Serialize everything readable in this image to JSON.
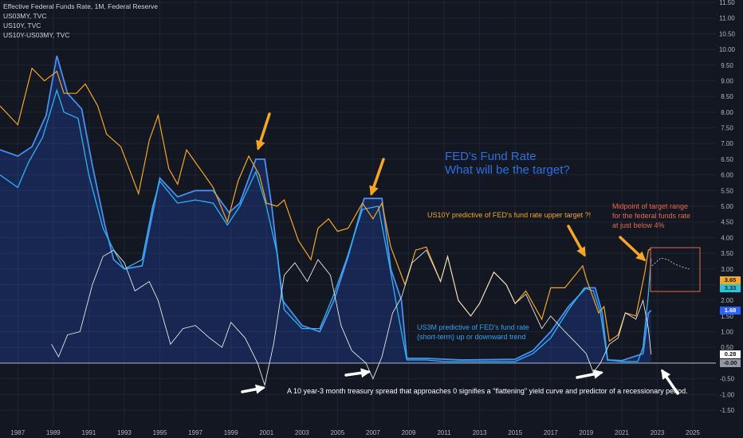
{
  "legend": {
    "line1": "Effective Federal Funds Rate, 1M, Federal Reserve",
    "line2": "US03MY, TVC",
    "line3": "US10Y, TVC",
    "line4": "US10Y-US03MY, TVC"
  },
  "annotations": {
    "title_line1": "FED's Fund Rate",
    "title_line2": "What will be the target?",
    "us10y_note": "US10Y predictive of FED's fund rate upper target ?!",
    "midpoint_line1": "Midpoint of target range",
    "midpoint_line2": "for the federal funds rate",
    "midpoint_line3": "at just below 4%",
    "us3m_line1": "US3M predictive of FED's fund rate",
    "us3m_line2": "(short-term) up or downward trend",
    "spread_note": "A 10 year-3 month treasury spread that approaches 0 signifies a \"flattening\" yield curve and predictor of a recessionary period."
  },
  "badges": {
    "us10y": "3.65",
    "us3m": "3.33",
    "fedfunds": "1.68",
    "spread": "0.28",
    "zero": "-0.00"
  },
  "colors": {
    "background": "#131722",
    "us10y": "#f5a623",
    "us3m": "#2196f3",
    "fedfunds": "#4a8ef0",
    "spread": "#e6e6e6",
    "title": "#2f6fe0",
    "midpoint_box": "#e8694a",
    "arrow_orange": "#f5a623",
    "arrow_white": "#ffffff"
  },
  "chart_data": {
    "type": "line",
    "xlabel": "",
    "ylabel": "",
    "x_ticks": [
      "1987",
      "1989",
      "1991",
      "1993",
      "1995",
      "1997",
      "1999",
      "2001",
      "2003",
      "2005",
      "2007",
      "2009",
      "2011",
      "2013",
      "2015",
      "2017",
      "2019",
      "2021",
      "2023",
      "2025"
    ],
    "y_ticks": [
      "11.50",
      "11.00",
      "10.50",
      "10.00",
      "9.50",
      "9.00",
      "8.50",
      "8.00",
      "7.50",
      "7.00",
      "6.50",
      "6.00",
      "5.50",
      "5.00",
      "4.50",
      "4.00",
      "3.50",
      "3.00",
      "2.50",
      "2.00",
      "1.50",
      "1.00",
      "0.50",
      "0.00",
      "-0.50",
      "-1.00",
      "-1.50"
    ],
    "ylim": [
      -1.5,
      11.5
    ],
    "xlim": [
      1986.0,
      2026.3
    ],
    "series": [
      {
        "name": "US10Y, TVC",
        "points": [
          [
            1986.0,
            8.2
          ],
          [
            1987.0,
            7.6
          ],
          [
            1987.8,
            9.4
          ],
          [
            1988.5,
            9.0
          ],
          [
            1989.2,
            9.3
          ],
          [
            1989.6,
            8.6
          ],
          [
            1990.3,
            8.6
          ],
          [
            1990.8,
            8.9
          ],
          [
            1991.5,
            8.2
          ],
          [
            1992.0,
            7.3
          ],
          [
            1992.8,
            6.9
          ],
          [
            1993.4,
            6.0
          ],
          [
            1993.8,
            5.4
          ],
          [
            1994.4,
            7.1
          ],
          [
            1994.9,
            7.9
          ],
          [
            1995.5,
            6.2
          ],
          [
            1996.0,
            5.7
          ],
          [
            1996.5,
            6.8
          ],
          [
            1997.0,
            6.4
          ],
          [
            1997.5,
            6.0
          ],
          [
            1998.0,
            5.6
          ],
          [
            1998.8,
            4.5
          ],
          [
            1999.4,
            5.8
          ],
          [
            2000.0,
            6.6
          ],
          [
            2000.6,
            6.0
          ],
          [
            2001.0,
            5.1
          ],
          [
            2001.6,
            5.0
          ],
          [
            2002.0,
            5.2
          ],
          [
            2002.8,
            3.9
          ],
          [
            2003.5,
            3.3
          ],
          [
            2003.9,
            4.3
          ],
          [
            2004.5,
            4.6
          ],
          [
            2005.0,
            4.2
          ],
          [
            2005.6,
            4.3
          ],
          [
            2006.4,
            5.1
          ],
          [
            2007.0,
            4.6
          ],
          [
            2007.5,
            5.1
          ],
          [
            2008.0,
            3.7
          ],
          [
            2008.8,
            2.5
          ],
          [
            2009.4,
            3.6
          ],
          [
            2010.0,
            3.7
          ],
          [
            2010.8,
            2.6
          ],
          [
            2011.2,
            3.4
          ],
          [
            2011.8,
            2.0
          ],
          [
            2012.5,
            1.5
          ],
          [
            2013.0,
            1.9
          ],
          [
            2013.8,
            2.9
          ],
          [
            2014.5,
            2.5
          ],
          [
            2015.0,
            1.9
          ],
          [
            2015.6,
            2.3
          ],
          [
            2016.5,
            1.4
          ],
          [
            2017.0,
            2.4
          ],
          [
            2017.8,
            2.4
          ],
          [
            2018.8,
            3.1
          ],
          [
            2019.0,
            2.7
          ],
          [
            2019.7,
            1.6
          ],
          [
            2020.0,
            1.8
          ],
          [
            2020.3,
            0.7
          ],
          [
            2020.8,
            0.9
          ],
          [
            2021.2,
            1.6
          ],
          [
            2021.8,
            1.5
          ],
          [
            2022.3,
            2.9
          ],
          [
            2022.5,
            3.6
          ],
          [
            2022.65,
            3.65
          ]
        ]
      },
      {
        "name": "US03MY, TVC",
        "points": [
          [
            1986.0,
            6.0
          ],
          [
            1987.0,
            5.6
          ],
          [
            1987.6,
            6.4
          ],
          [
            1988.4,
            7.2
          ],
          [
            1989.2,
            8.7
          ],
          [
            1989.6,
            8.0
          ],
          [
            1990.4,
            7.8
          ],
          [
            1991.0,
            6.0
          ],
          [
            1991.8,
            4.3
          ],
          [
            1992.4,
            3.6
          ],
          [
            1993.0,
            3.0
          ],
          [
            1994.0,
            3.3
          ],
          [
            1994.6,
            5.0
          ],
          [
            1995.0,
            5.8
          ],
          [
            1996.0,
            5.1
          ],
          [
            1997.0,
            5.2
          ],
          [
            1998.0,
            5.1
          ],
          [
            1998.8,
            4.4
          ],
          [
            1999.5,
            5.0
          ],
          [
            2000.4,
            6.1
          ],
          [
            2001.0,
            5.0
          ],
          [
            2001.6,
            3.5
          ],
          [
            2002.0,
            1.7
          ],
          [
            2003.0,
            1.1
          ],
          [
            2004.0,
            1.1
          ],
          [
            2004.8,
            2.2
          ],
          [
            2005.5,
            3.3
          ],
          [
            2006.4,
            4.9
          ],
          [
            2007.3,
            5.0
          ],
          [
            2007.9,
            3.2
          ],
          [
            2008.4,
            1.6
          ],
          [
            2008.9,
            0.1
          ],
          [
            2010.0,
            0.1
          ],
          [
            2011.0,
            0.05
          ],
          [
            2013.0,
            0.05
          ],
          [
            2015.0,
            0.05
          ],
          [
            2016.0,
            0.3
          ],
          [
            2017.0,
            0.8
          ],
          [
            2018.0,
            1.7
          ],
          [
            2018.9,
            2.4
          ],
          [
            2019.4,
            2.3
          ],
          [
            2019.8,
            1.6
          ],
          [
            2020.2,
            0.1
          ],
          [
            2021.0,
            0.05
          ],
          [
            2021.9,
            0.05
          ],
          [
            2022.2,
            0.5
          ],
          [
            2022.5,
            2.2
          ],
          [
            2022.65,
            3.33
          ]
        ]
      },
      {
        "name": "Effective Federal Funds Rate, 1M, Federal Reserve",
        "points": [
          [
            1986.0,
            6.8
          ],
          [
            1987.0,
            6.6
          ],
          [
            1987.8,
            6.9
          ],
          [
            1988.6,
            7.9
          ],
          [
            1989.2,
            9.8
          ],
          [
            1989.8,
            8.6
          ],
          [
            1990.6,
            8.1
          ],
          [
            1991.2,
            6.3
          ],
          [
            1991.9,
            4.4
          ],
          [
            1992.4,
            3.3
          ],
          [
            1993.0,
            3.0
          ],
          [
            1994.0,
            3.1
          ],
          [
            1994.6,
            4.8
          ],
          [
            1995.0,
            5.9
          ],
          [
            1996.0,
            5.3
          ],
          [
            1997.0,
            5.5
          ],
          [
            1998.0,
            5.5
          ],
          [
            1998.9,
            4.8
          ],
          [
            1999.5,
            5.1
          ],
          [
            2000.4,
            6.5
          ],
          [
            2000.9,
            6.5
          ],
          [
            2001.3,
            5.0
          ],
          [
            2001.9,
            2.0
          ],
          [
            2003.0,
            1.2
          ],
          [
            2004.0,
            1.0
          ],
          [
            2004.8,
            2.0
          ],
          [
            2005.6,
            3.4
          ],
          [
            2006.5,
            5.25
          ],
          [
            2007.5,
            5.25
          ],
          [
            2008.0,
            3.0
          ],
          [
            2008.6,
            2.0
          ],
          [
            2008.9,
            0.15
          ],
          [
            2010.0,
            0.15
          ],
          [
            2012.0,
            0.1
          ],
          [
            2015.0,
            0.12
          ],
          [
            2016.0,
            0.4
          ],
          [
            2017.0,
            1.0
          ],
          [
            2018.0,
            1.8
          ],
          [
            2019.0,
            2.4
          ],
          [
            2019.5,
            2.4
          ],
          [
            2019.9,
            1.6
          ],
          [
            2020.2,
            0.1
          ],
          [
            2021.0,
            0.08
          ],
          [
            2022.2,
            0.3
          ],
          [
            2022.5,
            1.6
          ],
          [
            2022.65,
            1.68
          ]
        ]
      },
      {
        "name": "US10Y-US03MY, TVC",
        "points": [
          [
            1988.9,
            0.6
          ],
          [
            1989.3,
            0.2
          ],
          [
            1989.8,
            0.9
          ],
          [
            1990.5,
            1.0
          ],
          [
            1991.2,
            2.5
          ],
          [
            1991.8,
            3.4
          ],
          [
            1992.4,
            3.6
          ],
          [
            1993.0,
            3.2
          ],
          [
            1993.6,
            2.3
          ],
          [
            1994.4,
            2.6
          ],
          [
            1994.9,
            2.0
          ],
          [
            1995.6,
            0.6
          ],
          [
            1996.3,
            1.1
          ],
          [
            1997.0,
            1.2
          ],
          [
            1997.8,
            0.8
          ],
          [
            1998.5,
            0.5
          ],
          [
            1999.0,
            1.3
          ],
          [
            1999.8,
            0.8
          ],
          [
            2000.5,
            0.0
          ],
          [
            2000.9,
            -0.7
          ],
          [
            2001.4,
            0.6
          ],
          [
            2002.0,
            2.8
          ],
          [
            2002.6,
            3.2
          ],
          [
            2003.3,
            2.6
          ],
          [
            2003.9,
            3.3
          ],
          [
            2004.6,
            2.8
          ],
          [
            2005.2,
            1.2
          ],
          [
            2005.8,
            0.4
          ],
          [
            2006.6,
            0.0
          ],
          [
            2007.0,
            -0.5
          ],
          [
            2007.5,
            0.2
          ],
          [
            2008.1,
            1.6
          ],
          [
            2008.6,
            2.1
          ],
          [
            2009.2,
            3.2
          ],
          [
            2010.0,
            3.6
          ],
          [
            2010.8,
            2.6
          ],
          [
            2011.2,
            3.4
          ],
          [
            2011.8,
            2.0
          ],
          [
            2012.5,
            1.5
          ],
          [
            2013.0,
            1.9
          ],
          [
            2013.8,
            2.9
          ],
          [
            2014.5,
            2.5
          ],
          [
            2015.0,
            1.9
          ],
          [
            2015.6,
            2.2
          ],
          [
            2016.5,
            1.1
          ],
          [
            2017.0,
            1.5
          ],
          [
            2017.8,
            1.0
          ],
          [
            2018.5,
            0.6
          ],
          [
            2019.0,
            0.3
          ],
          [
            2019.4,
            -0.3
          ],
          [
            2019.8,
            0.0
          ],
          [
            2020.3,
            0.6
          ],
          [
            2020.8,
            0.8
          ],
          [
            2021.2,
            1.6
          ],
          [
            2021.8,
            1.4
          ],
          [
            2022.2,
            2.0
          ],
          [
            2022.5,
            1.1
          ],
          [
            2022.65,
            0.28
          ]
        ]
      },
      {
        "name": "projection",
        "points": [
          [
            2022.7,
            3.1
          ],
          [
            2022.9,
            3.2
          ],
          [
            2023.2,
            3.35
          ],
          [
            2023.6,
            3.3
          ],
          [
            2024.0,
            3.15
          ],
          [
            2024.5,
            3.05
          ],
          [
            2024.8,
            3.0
          ]
        ]
      }
    ]
  }
}
